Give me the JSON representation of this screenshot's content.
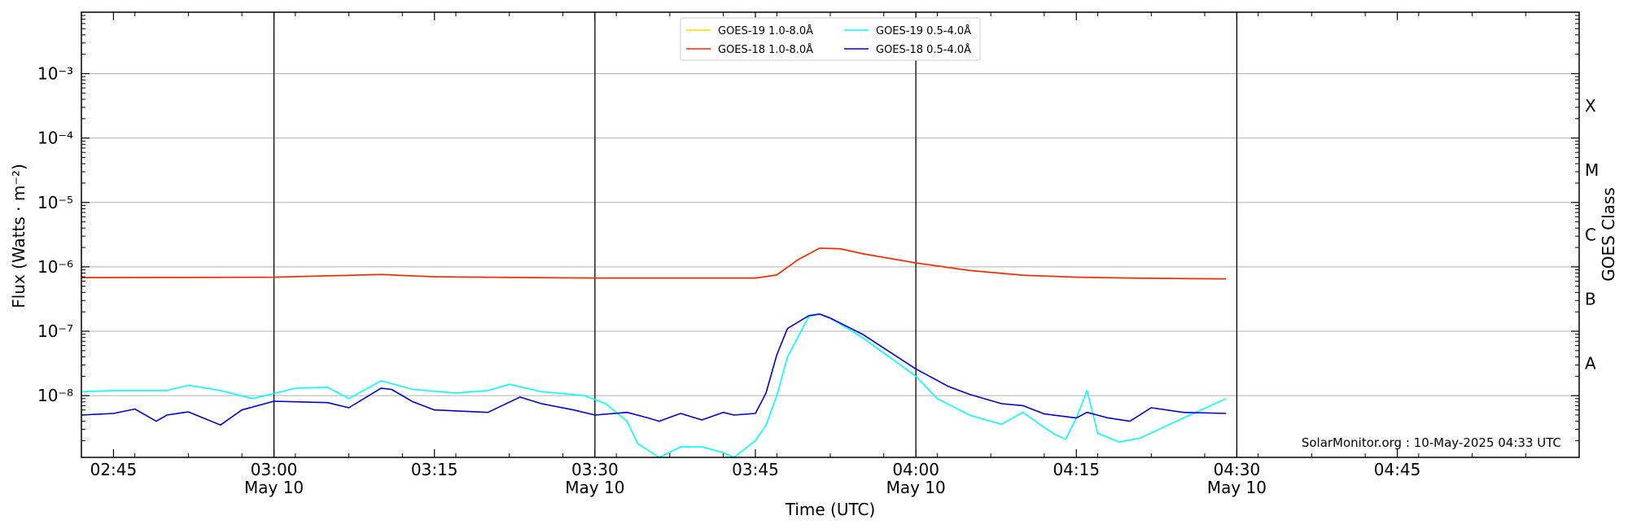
{
  "chart_data": {
    "type": "line",
    "ylabel": "Flux (Watts · m⁻²)",
    "xlabel": "Time (UTC)",
    "y2label": "GOES Class",
    "yscale": "log",
    "ylim": [
      1.1e-09,
      0.009
    ],
    "xlim": [
      "02:42",
      "05:02"
    ],
    "yticks": [
      {
        "value": 1e-08,
        "label": "10⁻⁸"
      },
      {
        "value": 1e-07,
        "label": "10⁻⁷"
      },
      {
        "value": 1e-06,
        "label": "10⁻⁶"
      },
      {
        "value": 1e-05,
        "label": "10⁻⁵"
      },
      {
        "value": 0.0001,
        "label": "10⁻⁴"
      },
      {
        "value": 0.001,
        "label": "10⁻³"
      }
    ],
    "xticks": [
      {
        "time": "02:45",
        "label": "02:45",
        "sublabel": ""
      },
      {
        "time": "03:00",
        "label": "03:00",
        "sublabel": "May 10"
      },
      {
        "time": "03:15",
        "label": "03:15",
        "sublabel": ""
      },
      {
        "time": "03:30",
        "label": "03:30",
        "sublabel": "May 10"
      },
      {
        "time": "03:45",
        "label": "03:45",
        "sublabel": ""
      },
      {
        "time": "04:00",
        "label": "04:00",
        "sublabel": "May 10"
      },
      {
        "time": "04:15",
        "label": "04:15",
        "sublabel": ""
      },
      {
        "time": "04:30",
        "label": "04:30",
        "sublabel": "May 10"
      },
      {
        "time": "04:45",
        "label": "04:45",
        "sublabel": ""
      }
    ],
    "vlines": [
      "03:00",
      "03:30",
      "04:00",
      "04:30"
    ],
    "goes_classes": [
      {
        "label": "A",
        "value": 3.16e-08
      },
      {
        "label": "B",
        "value": 3.16e-07
      },
      {
        "label": "C",
        "value": 3.16e-06
      },
      {
        "label": "M",
        "value": 3.16e-05
      },
      {
        "label": "X",
        "value": 0.000316
      }
    ],
    "grid": true,
    "legend_position": "top-center",
    "credit": "SolarMonitor.org : 10-May-2025 04:33 UTC",
    "series": [
      {
        "name": "GOES-19 1.0-8.0Å",
        "color": "#ffd700",
        "x": [
          "02:42",
          "03:00",
          "03:10",
          "03:15",
          "03:30",
          "03:45",
          "03:47",
          "03:49",
          "03:51",
          "03:53",
          "03:55",
          "04:00",
          "04:05",
          "04:10",
          "04:15",
          "04:20",
          "04:29"
        ],
        "y": [
          6.8e-07,
          6.9e-07,
          7.6e-07,
          7e-07,
          6.7e-07,
          6.7e-07,
          7.5e-07,
          1.3e-06,
          1.95e-06,
          1.9e-06,
          1.6e-06,
          1.15e-06,
          8.8e-07,
          7.4e-07,
          6.9e-07,
          6.7e-07,
          6.5e-07
        ]
      },
      {
        "name": "GOES-18 1.0-8.0Å",
        "color": "#ff2200",
        "x": [
          "02:42",
          "03:00",
          "03:10",
          "03:15",
          "03:30",
          "03:45",
          "03:47",
          "03:49",
          "03:51",
          "03:53",
          "03:55",
          "04:00",
          "04:05",
          "04:10",
          "04:15",
          "04:20",
          "04:29"
        ],
        "y": [
          6.8e-07,
          6.9e-07,
          7.6e-07,
          7e-07,
          6.7e-07,
          6.7e-07,
          7.5e-07,
          1.3e-06,
          1.95e-06,
          1.9e-06,
          1.6e-06,
          1.15e-06,
          8.8e-07,
          7.4e-07,
          6.9e-07,
          6.7e-07,
          6.5e-07
        ]
      },
      {
        "name": "GOES-19 0.5-4.0Å",
        "color": "#00ffff",
        "x": [
          "02:42",
          "02:45",
          "02:50",
          "02:52",
          "02:55",
          "02:58",
          "03:02",
          "03:05",
          "03:07",
          "03:10",
          "03:13",
          "03:17",
          "03:20",
          "03:22",
          "03:25",
          "03:29",
          "03:31",
          "03:33",
          "03:34",
          "03:36",
          "03:38",
          "03:40",
          "03:42",
          "03:43",
          "03:45",
          "03:46",
          "03:47",
          "03:48",
          "03:50",
          "03:51",
          "03:52",
          "03:55",
          "04:00",
          "04:02",
          "04:05",
          "04:07",
          "04:08",
          "04:10",
          "04:12",
          "04:13",
          "04:14",
          "04:15",
          "04:16",
          "04:17",
          "04:19",
          "04:21",
          "04:25",
          "04:29"
        ],
        "y": [
          1.15e-08,
          1.2e-08,
          1.2e-08,
          1.45e-08,
          1.2e-08,
          9e-09,
          1.3e-08,
          1.35e-08,
          9e-09,
          1.7e-08,
          1.25e-08,
          1.1e-08,
          1.2e-08,
          1.5e-08,
          1.15e-08,
          1e-08,
          7.5e-09,
          4e-09,
          1.8e-09,
          1.05e-09,
          1.6e-09,
          1.6e-09,
          1.3e-09,
          1.05e-09,
          2e-09,
          3.5e-09,
          1e-08,
          4e-08,
          1.7e-07,
          1.85e-07,
          1.6e-07,
          8e-08,
          2e-08,
          9e-09,
          5e-09,
          4e-09,
          3.6e-09,
          5.5e-09,
          3.2e-09,
          2.5e-09,
          2.1e-09,
          4.5e-09,
          1.2e-08,
          2.6e-09,
          1.9e-09,
          2.2e-09,
          4.5e-09,
          9e-09
        ]
      },
      {
        "name": "GOES-18 0.5-4.0Å",
        "color": "#0000dd",
        "x": [
          "02:42",
          "02:45",
          "02:47",
          "02:49",
          "02:50",
          "02:52",
          "02:55",
          "02:57",
          "03:00",
          "03:05",
          "03:07",
          "03:10",
          "03:11",
          "03:13",
          "03:15",
          "03:20",
          "03:23",
          "03:25",
          "03:28",
          "03:30",
          "03:33",
          "03:35",
          "03:36",
          "03:38",
          "03:40",
          "03:42",
          "03:43",
          "03:45",
          "03:46",
          "03:47",
          "03:48",
          "03:50",
          "03:51",
          "03:52",
          "03:55",
          "04:00",
          "04:03",
          "04:05",
          "04:08",
          "04:10",
          "04:12",
          "04:15",
          "04:16",
          "04:18",
          "04:20",
          "04:22",
          "04:25",
          "04:29"
        ],
        "y": [
          5e-09,
          5.3e-09,
          6.2e-09,
          4e-09,
          5e-09,
          5.6e-09,
          3.5e-09,
          6e-09,
          8.2e-09,
          7.8e-09,
          6.5e-09,
          1.3e-08,
          1.25e-08,
          8e-09,
          6e-09,
          5.5e-09,
          9.5e-09,
          7.5e-09,
          6e-09,
          5e-09,
          5.5e-09,
          4.5e-09,
          4e-09,
          5.3e-09,
          4.2e-09,
          5.5e-09,
          5e-09,
          5.3e-09,
          1.1e-08,
          4.3e-08,
          1.1e-07,
          1.75e-07,
          1.85e-07,
          1.6e-07,
          9e-08,
          2.6e-08,
          1.4e-08,
          1.05e-08,
          7.5e-09,
          7e-09,
          5.2e-09,
          4.5e-09,
          5.5e-09,
          4.5e-09,
          4e-09,
          6.5e-09,
          5.5e-09,
          5.3e-09
        ]
      }
    ]
  }
}
